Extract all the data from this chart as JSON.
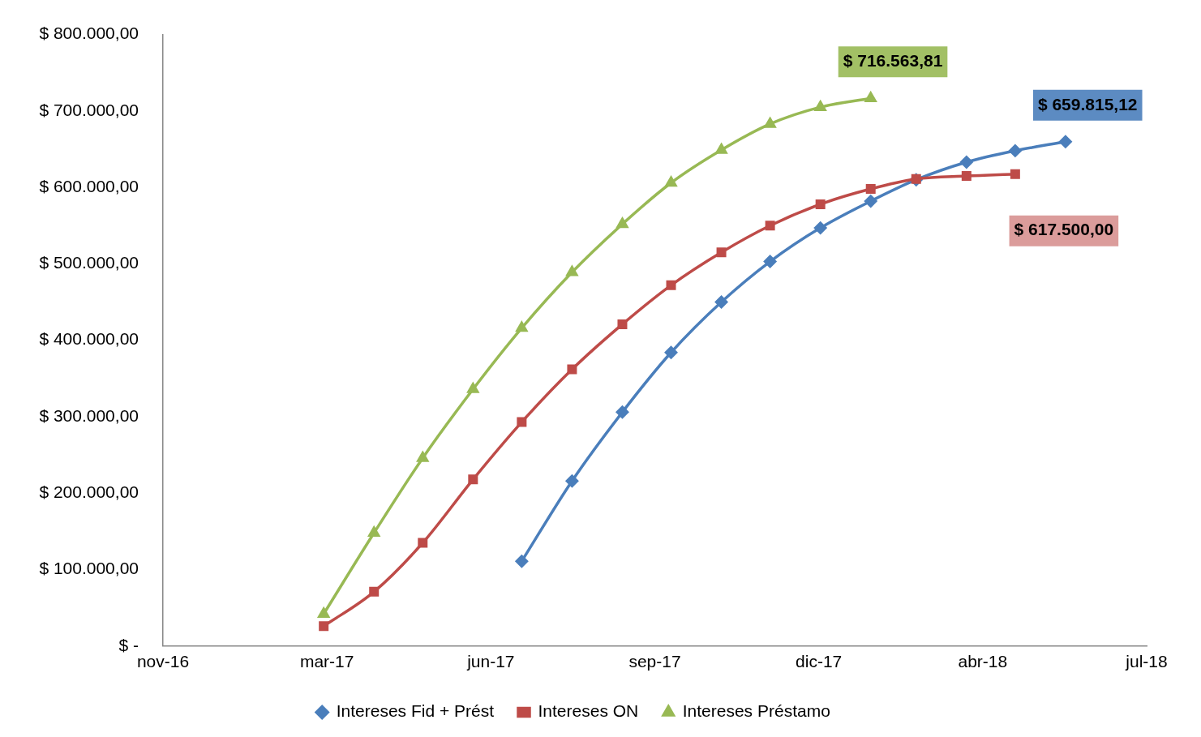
{
  "chart_data": {
    "type": "line",
    "xlim": [
      "2016-11-21",
      "2018-07-20"
    ],
    "xticks": [
      {
        "value": "2016-11-21",
        "label": "nov-16"
      },
      {
        "value": "2017-03-02",
        "label": "mar-17"
      },
      {
        "value": "2017-06-11",
        "label": "jun-17"
      },
      {
        "value": "2017-09-20",
        "label": "sep-17"
      },
      {
        "value": "2017-12-30",
        "label": "dic-17"
      },
      {
        "value": "2018-04-10",
        "label": "abr-18"
      },
      {
        "value": "2018-07-20",
        "label": "jul-18"
      }
    ],
    "ylim": [
      0,
      800000
    ],
    "yticks": [
      {
        "value": 0,
        "label": "$ -"
      },
      {
        "value": 100000,
        "label": "$ 100.000,00"
      },
      {
        "value": 200000,
        "label": "$ 200.000,00"
      },
      {
        "value": 300000,
        "label": "$ 300.000,00"
      },
      {
        "value": 400000,
        "label": "$ 400.000,00"
      },
      {
        "value": 500000,
        "label": "$ 500.000,00"
      },
      {
        "value": 600000,
        "label": "$ 600.000,00"
      },
      {
        "value": 700000,
        "label": "$ 700.000,00"
      },
      {
        "value": 800000,
        "label": "$ 800.000,00"
      }
    ],
    "grid": false,
    "legend": "bottom",
    "line_style": "solid",
    "series": [
      {
        "name": "Intereses Fid + Prést",
        "color": "#4a7ebb",
        "marker": "diamond",
        "x": [
          "2017-06-30",
          "2017-07-31",
          "2017-08-31",
          "2017-09-30",
          "2017-10-31",
          "2017-11-30",
          "2017-12-31",
          "2018-01-31",
          "2018-02-28",
          "2018-03-31",
          "2018-04-30",
          "2018-05-31"
        ],
        "values": [
          111000,
          216000,
          306000,
          384000,
          450000,
          503000,
          547000,
          582000,
          610000,
          633000,
          648000,
          659815.12
        ],
        "value_labels": [
          null,
          null,
          null,
          null,
          null,
          null,
          null,
          null,
          null,
          null,
          null,
          "$ 659.815,12"
        ]
      },
      {
        "name": "Intereses ON",
        "color": "#be4b48",
        "marker": "square",
        "x": [
          "2017-02-28",
          "2017-03-31",
          "2017-04-30",
          "2017-05-31",
          "2017-06-30",
          "2017-07-31",
          "2017-08-31",
          "2017-09-30",
          "2017-10-31",
          "2017-11-30",
          "2017-12-31",
          "2018-01-31",
          "2018-02-28",
          "2018-03-31",
          "2018-04-30"
        ],
        "values": [
          26000,
          71000,
          135000,
          218000,
          293000,
          362000,
          421000,
          472000,
          515000,
          550000,
          578000,
          598000,
          611000,
          615000,
          617500
        ],
        "value_labels": [
          null,
          null,
          null,
          null,
          null,
          null,
          null,
          null,
          null,
          null,
          null,
          null,
          null,
          null,
          "$ 617.500,00"
        ]
      },
      {
        "name": "Intereses Préstamo",
        "color": "#98b954",
        "marker": "triangle",
        "x": [
          "2017-02-28",
          "2017-03-31",
          "2017-04-30",
          "2017-05-31",
          "2017-06-30",
          "2017-07-31",
          "2017-08-31",
          "2017-09-30",
          "2017-10-31",
          "2017-11-30",
          "2017-12-31",
          "2018-01-31"
        ],
        "values": [
          42000,
          148000,
          246000,
          336000,
          416000,
          489000,
          552000,
          606000,
          649000,
          683000,
          705000,
          716563.81
        ],
        "value_labels": [
          null,
          null,
          null,
          null,
          null,
          null,
          null,
          null,
          null,
          null,
          null,
          "$ 716.563,81"
        ]
      }
    ]
  }
}
